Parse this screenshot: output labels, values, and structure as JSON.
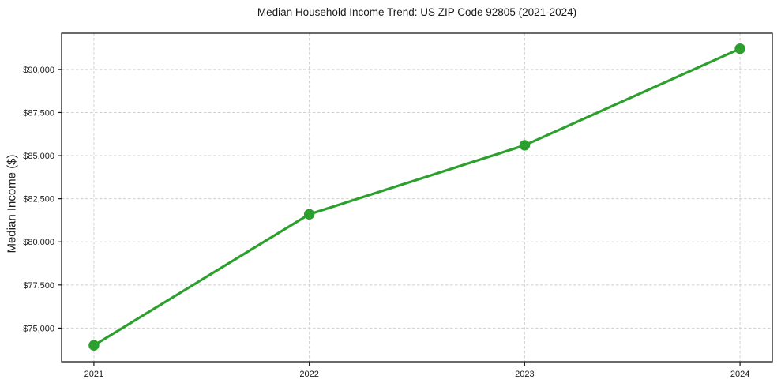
{
  "chart_data": {
    "type": "line",
    "title": "Median Household Income Trend: US ZIP Code 92805 (2021-2024)",
    "xlabel": "",
    "ylabel": "Median Income ($)",
    "x": [
      2021,
      2022,
      2023,
      2024
    ],
    "x_tick_labels": [
      "2021",
      "2022",
      "2023",
      "2024"
    ],
    "values": [
      74000,
      81600,
      85600,
      91200
    ],
    "y_ticks": [
      75000,
      77500,
      80000,
      82500,
      85000,
      87500,
      90000
    ],
    "y_tick_labels": [
      "$75,000",
      "$77,500",
      "$80,000",
      "$82,500",
      "$85,000",
      "$87,500",
      "$90,000"
    ],
    "xlim": [
      2020.85,
      2024.15
    ],
    "ylim": [
      73050,
      92100
    ],
    "grid": true,
    "legend": "none",
    "marker_style": "circle",
    "colors": {
      "line": "#2ca02c",
      "grid": "#d0d0d0",
      "axis": "#1a1a1a",
      "text": "#1a1a1a",
      "background": "#ffffff"
    }
  }
}
